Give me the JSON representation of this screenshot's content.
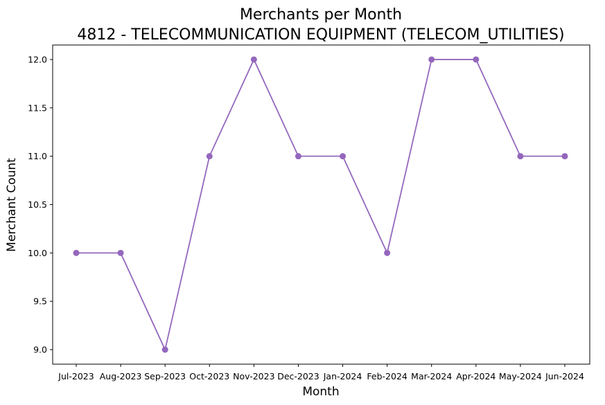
{
  "chart_data": {
    "type": "line",
    "title": "Merchants per Month",
    "subtitle": "4812 - TELECOMMUNICATION EQUIPMENT (TELECOM_UTILITIES)",
    "xlabel": "Month",
    "ylabel": "Merchant Count",
    "categories": [
      "Jul-2023",
      "Aug-2023",
      "Sep-2023",
      "Oct-2023",
      "Nov-2023",
      "Dec-2023",
      "Jan-2024",
      "Feb-2024",
      "Mar-2024",
      "Apr-2024",
      "May-2024",
      "Jun-2024"
    ],
    "values": [
      10,
      10,
      9,
      11,
      12,
      11,
      11,
      10,
      12,
      12,
      11,
      11
    ],
    "ylim": [
      8.85,
      12.15
    ],
    "yticks": [
      9.0,
      9.5,
      10.0,
      10.5,
      11.0,
      11.5,
      12.0
    ],
    "yticks_labels": [
      "9.0",
      "9.5",
      "10.0",
      "10.5",
      "11.0",
      "11.5",
      "12.0"
    ],
    "grid": false,
    "color": "#9467bd"
  }
}
